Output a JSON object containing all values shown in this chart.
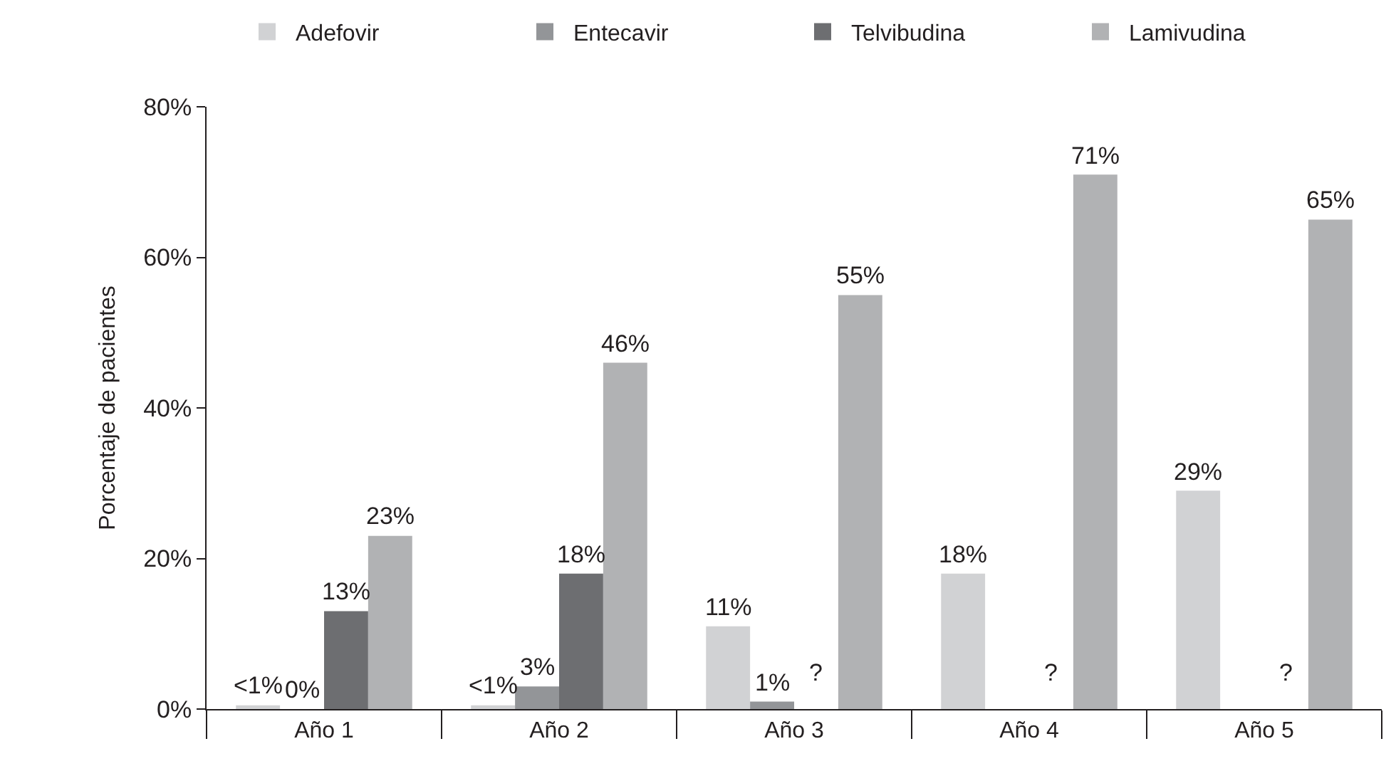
{
  "chart_data": {
    "type": "bar",
    "ylabel": "Porcentaje de pacientes",
    "categories": [
      "Año 1",
      "Año 2",
      "Año 3",
      "Año 4",
      "Año 5"
    ],
    "series": [
      {
        "name": "Adefovir",
        "color": "#d1d2d4",
        "values": [
          0.5,
          0.5,
          11,
          18,
          29
        ],
        "value_labels": [
          "<1%",
          "<1%",
          "11%",
          "18%",
          "29%"
        ]
      },
      {
        "name": "Entecavir",
        "color": "#939598",
        "values": [
          0,
          3,
          1,
          null,
          null
        ],
        "value_labels": [
          "0%",
          "3%",
          "1%",
          null,
          null
        ]
      },
      {
        "name": "Telvibudina",
        "color": "#6d6e71",
        "values": [
          13,
          18,
          null,
          null,
          null
        ],
        "value_labels": [
          "13%",
          "18%",
          "?",
          "?",
          "?"
        ]
      },
      {
        "name": "Lamivudina",
        "color": "#b1b2b4",
        "values": [
          23,
          46,
          55,
          71,
          65
        ],
        "value_labels": [
          "23%",
          "46%",
          "55%",
          "71%",
          "65%"
        ]
      }
    ],
    "ylim": [
      0,
      80
    ],
    "yticks": [
      {
        "value": 0,
        "label": "0%"
      },
      {
        "value": 20,
        "label": "20%"
      },
      {
        "value": 40,
        "label": "40%"
      },
      {
        "value": 60,
        "label": "60%"
      },
      {
        "value": 80,
        "label": "80%"
      }
    ],
    "legend": "top"
  }
}
